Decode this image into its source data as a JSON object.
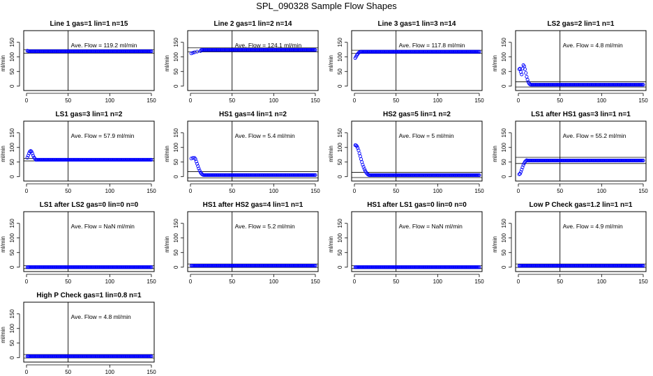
{
  "page": {
    "title": "SPL_090328  Sample Flow Shapes"
  },
  "colors": {
    "points": "#0000ff",
    "axes": "#000000"
  },
  "chart_data": [
    {
      "type": "scatter",
      "title": "Line 1 gas=1 lin=1 n=15",
      "ylabel": "ml/min",
      "xlim": [
        0,
        150
      ],
      "ylim": [
        -15,
        190
      ],
      "xticks": [
        0,
        50,
        100,
        150
      ],
      "yticks": [
        0,
        50,
        100,
        150
      ],
      "vline": 50,
      "hlines": [
        125,
        113
      ],
      "annotation": "Ave. Flow =  119.2  ml/min",
      "profile": {
        "start": [
          [
            1,
            121
          ],
          [
            2,
            120
          ]
        ],
        "steady": 119.2,
        "x_end": 150
      }
    },
    {
      "type": "scatter",
      "title": "Line 2 gas=1 lin=2 n=14",
      "ylabel": "ml/min",
      "xlim": [
        0,
        150
      ],
      "ylim": [
        -15,
        190
      ],
      "xticks": [
        0,
        50,
        100,
        150
      ],
      "yticks": [
        0,
        50,
        100,
        150
      ],
      "vline": 50,
      "hlines": [
        131,
        117
      ],
      "annotation": "Ave. Flow =  124.1  ml/min",
      "profile": {
        "start": [
          [
            1,
            112
          ],
          [
            3,
            114
          ],
          [
            5,
            116
          ],
          [
            8,
            118
          ],
          [
            12,
            120
          ]
        ],
        "steady": 124.1,
        "x_end": 150
      }
    },
    {
      "type": "scatter",
      "title": "Line 3 gas=1 lin=3 n=14",
      "ylabel": "ml/min",
      "xlim": [
        0,
        150
      ],
      "ylim": [
        -15,
        190
      ],
      "xticks": [
        0,
        50,
        100,
        150
      ],
      "yticks": [
        0,
        50,
        100,
        150
      ],
      "vline": 50,
      "hlines": [
        123,
        112
      ],
      "annotation": "Ave. Flow =  117.8  ml/min",
      "profile": {
        "start": [
          [
            1,
            96
          ],
          [
            2,
            101
          ],
          [
            3,
            106
          ],
          [
            4,
            110
          ],
          [
            5,
            114
          ],
          [
            6,
            116
          ]
        ],
        "steady": 117.8,
        "x_end": 150
      }
    },
    {
      "type": "scatter",
      "title": "LS2 gas=2 lin=1 n=1",
      "ylabel": "ml/min",
      "xlim": [
        0,
        150
      ],
      "ylim": [
        -15,
        190
      ],
      "xticks": [
        0,
        50,
        100,
        150
      ],
      "yticks": [
        0,
        50,
        100,
        150
      ],
      "vline": 50,
      "hlines": [
        15,
        -3
      ],
      "annotation": "Ave. Flow =  4.8  ml/min",
      "profile": {
        "start": [
          [
            1,
            58
          ],
          [
            2,
            60
          ],
          [
            3,
            48
          ],
          [
            4,
            40
          ],
          [
            5,
            60
          ],
          [
            6,
            72
          ],
          [
            7,
            68
          ],
          [
            8,
            58
          ],
          [
            9,
            45
          ],
          [
            10,
            32
          ],
          [
            11,
            22
          ],
          [
            12,
            14
          ],
          [
            13,
            9
          ],
          [
            14,
            6
          ]
        ],
        "steady": 4.8,
        "x_end": 150
      }
    },
    {
      "type": "scatter",
      "title": "LS1 gas=3 lin=1 n=2",
      "ylabel": "ml/min",
      "xlim": [
        0,
        150
      ],
      "ylim": [
        -15,
        190
      ],
      "xticks": [
        0,
        50,
        100,
        150
      ],
      "yticks": [
        0,
        50,
        100,
        150
      ],
      "vline": 50,
      "hlines": [
        62,
        54
      ],
      "annotation": "Ave. Flow =  57.9  ml/min",
      "profile": {
        "start": [
          [
            1,
            65
          ],
          [
            2,
            72
          ],
          [
            3,
            80
          ],
          [
            4,
            86
          ],
          [
            5,
            88
          ],
          [
            6,
            86
          ],
          [
            7,
            80
          ],
          [
            8,
            72
          ],
          [
            9,
            66
          ],
          [
            10,
            62
          ]
        ],
        "steady": 57.9,
        "x_end": 150
      }
    },
    {
      "type": "scatter",
      "title": "HS1 gas=4 lin=1 n=2",
      "ylabel": "ml/min",
      "xlim": [
        0,
        150
      ],
      "ylim": [
        -15,
        190
      ],
      "xticks": [
        0,
        50,
        100,
        150
      ],
      "yticks": [
        0,
        50,
        100,
        150
      ],
      "vline": 50,
      "hlines": [
        17,
        -4
      ],
      "annotation": "Ave. Flow =  5.4  ml/min",
      "profile": {
        "start": [
          [
            1,
            62
          ],
          [
            3,
            64
          ],
          [
            5,
            64
          ],
          [
            6,
            60
          ],
          [
            7,
            52
          ],
          [
            8,
            44
          ],
          [
            9,
            36
          ],
          [
            10,
            28
          ],
          [
            11,
            21
          ],
          [
            12,
            15
          ],
          [
            13,
            11
          ],
          [
            14,
            8
          ],
          [
            15,
            6
          ]
        ],
        "steady": 5.4,
        "x_end": 150
      }
    },
    {
      "type": "scatter",
      "title": "HS2 gas=5 lin=1 n=2",
      "ylabel": "ml/min",
      "xlim": [
        0,
        150
      ],
      "ylim": [
        -15,
        190
      ],
      "xticks": [
        0,
        50,
        100,
        150
      ],
      "yticks": [
        0,
        50,
        100,
        150
      ],
      "vline": 50,
      "hlines": [
        15,
        -3
      ],
      "annotation": "Ave. Flow =  5  ml/min",
      "profile": {
        "start": [
          [
            1,
            108
          ],
          [
            2,
            107
          ],
          [
            3,
            104
          ],
          [
            4,
            98
          ],
          [
            5,
            90
          ],
          [
            6,
            80
          ],
          [
            7,
            70
          ],
          [
            8,
            60
          ],
          [
            9,
            50
          ],
          [
            10,
            41
          ],
          [
            11,
            33
          ],
          [
            12,
            26
          ],
          [
            13,
            20
          ],
          [
            14,
            15
          ],
          [
            15,
            11
          ],
          [
            16,
            8
          ],
          [
            17,
            6
          ]
        ],
        "steady": 5.0,
        "x_end": 150
      }
    },
    {
      "type": "scatter",
      "title": "LS1 after HS1 gas=3 lin=1 n=1",
      "ylabel": "ml/min",
      "xlim": [
        0,
        150
      ],
      "ylim": [
        -15,
        190
      ],
      "xticks": [
        0,
        50,
        100,
        150
      ],
      "yticks": [
        0,
        50,
        100,
        150
      ],
      "vline": 50,
      "hlines": [
        66,
        45
      ],
      "annotation": "Ave. Flow =  55.2  ml/min",
      "profile": {
        "start": [
          [
            1,
            8
          ],
          [
            2,
            10
          ],
          [
            3,
            16
          ],
          [
            4,
            24
          ],
          [
            5,
            32
          ],
          [
            6,
            40
          ],
          [
            7,
            46
          ],
          [
            8,
            51
          ],
          [
            9,
            54
          ],
          [
            10,
            56
          ]
        ],
        "steady": 55.2,
        "x_end": 150
      }
    },
    {
      "type": "scatter",
      "title": "LS1 after LS2 gas=0 lin=0 n=0",
      "ylabel": "ml/min",
      "xlim": [
        0,
        150
      ],
      "ylim": [
        -15,
        190
      ],
      "xticks": [
        0,
        50,
        100,
        150
      ],
      "yticks": [
        0,
        50,
        100,
        150
      ],
      "vline": 50,
      "hlines": [
        5,
        -5
      ],
      "annotation": "Ave. Flow =  NaN  ml/min",
      "profile": {
        "start": [],
        "steady": 0,
        "x_end": 150
      }
    },
    {
      "type": "scatter",
      "title": "HS1 after HS2 gas=4 lin=1 n=1",
      "ylabel": "ml/min",
      "xlim": [
        0,
        150
      ],
      "ylim": [
        -15,
        190
      ],
      "xticks": [
        0,
        50,
        100,
        150
      ],
      "yticks": [
        0,
        50,
        100,
        150
      ],
      "vline": 50,
      "hlines": [
        11,
        -1
      ],
      "annotation": "Ave. Flow =  5.2  ml/min",
      "profile": {
        "start": [],
        "steady": 5.2,
        "x_end": 150
      }
    },
    {
      "type": "scatter",
      "title": "HS1 after LS1 gas=0 lin=0 n=0",
      "ylabel": "ml/min",
      "xlim": [
        0,
        150
      ],
      "ylim": [
        -15,
        190
      ],
      "xticks": [
        0,
        50,
        100,
        150
      ],
      "yticks": [
        0,
        50,
        100,
        150
      ],
      "vline": 50,
      "hlines": [
        5,
        -5
      ],
      "annotation": "Ave. Flow =  NaN  ml/min",
      "profile": {
        "start": [],
        "steady": 0,
        "x_end": 150
      }
    },
    {
      "type": "scatter",
      "title": "Low P Check gas=1.2 lin=1 n=1",
      "ylabel": "ml/min",
      "xlim": [
        0,
        150
      ],
      "ylim": [
        -15,
        190
      ],
      "xticks": [
        0,
        50,
        100,
        150
      ],
      "yticks": [
        0,
        50,
        100,
        150
      ],
      "vline": 50,
      "hlines": [
        11,
        -1
      ],
      "annotation": "Ave. Flow =  4.9  ml/min",
      "profile": {
        "start": [],
        "steady": 4.9,
        "x_end": 150
      }
    },
    {
      "type": "scatter",
      "title": "High P Check gas=1 lin=0.8 n=1",
      "ylabel": "ml/min",
      "xlim": [
        0,
        150
      ],
      "ylim": [
        -15,
        190
      ],
      "xticks": [
        0,
        50,
        100,
        150
      ],
      "yticks": [
        0,
        50,
        100,
        150
      ],
      "vline": 50,
      "hlines": [
        11,
        -1
      ],
      "annotation": "Ave. Flow =  4.8  ml/min",
      "profile": {
        "start": [],
        "steady": 4.8,
        "x_end": 150
      }
    }
  ]
}
